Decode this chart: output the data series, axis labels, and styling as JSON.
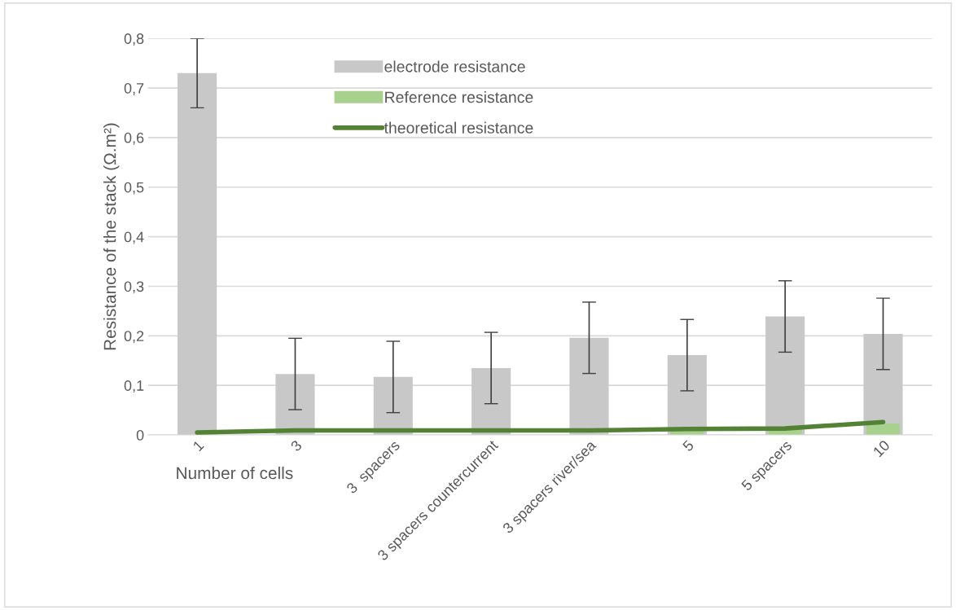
{
  "chart_data": {
    "type": "bar",
    "xlabel": "Number of cells",
    "ylabel": "Resistance of the stack (Ω.m²)",
    "categories": [
      "1",
      "3",
      "3  spacers",
      "3 spacers countercurrent",
      "3 spacers river/sea",
      "5",
      "5 spacers",
      "10"
    ],
    "series": [
      {
        "name": "electrode resistance",
        "color": "#c8c8c8",
        "values": [
          0.73,
          0.123,
          0.117,
          0.135,
          0.196,
          0.161,
          0.239,
          0.204
        ],
        "errors": [
          0.07,
          0.072,
          0.072,
          0.072,
          0.072,
          0.072,
          0.072,
          0.072
        ]
      },
      {
        "name": "Reference resistance",
        "color": "#a9d18e",
        "values": [
          null,
          null,
          null,
          null,
          null,
          0.01,
          0.013,
          0.023
        ]
      },
      {
        "name": "theoretical resistance",
        "type": "line",
        "color": "#548235",
        "values": [
          0.005,
          0.009,
          0.009,
          0.009,
          0.009,
          0.012,
          0.013,
          0.026
        ]
      }
    ],
    "ylim": [
      0,
      0.8
    ],
    "yticks": [
      {
        "value": 0,
        "label": "0"
      },
      {
        "value": 0.1,
        "label": "0,1"
      },
      {
        "value": 0.2,
        "label": "0,2"
      },
      {
        "value": 0.3,
        "label": "0,3"
      },
      {
        "value": 0.4,
        "label": "0,4"
      },
      {
        "value": 0.5,
        "label": "0,5"
      },
      {
        "value": 0.6,
        "label": "0,6"
      },
      {
        "value": 0.7,
        "label": "0,7"
      },
      {
        "value": 0.8,
        "label": "0,8"
      }
    ],
    "grid": "y",
    "legend": "top left",
    "marker": "none",
    "line_style": "solid"
  }
}
